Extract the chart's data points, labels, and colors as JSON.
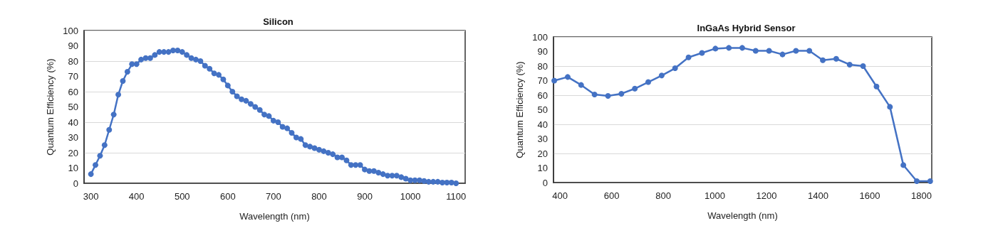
{
  "chart_data": [
    {
      "type": "line",
      "title": "Silicon",
      "xlabel": "Wavelength (nm)",
      "ylabel": "Quantum Efficiency (%)",
      "x": [
        300,
        310,
        320,
        330,
        340,
        350,
        360,
        370,
        380,
        390,
        400,
        410,
        420,
        430,
        440,
        450,
        460,
        470,
        480,
        490,
        500,
        510,
        520,
        530,
        540,
        550,
        560,
        570,
        580,
        590,
        600,
        610,
        620,
        630,
        640,
        650,
        660,
        670,
        680,
        690,
        700,
        710,
        720,
        730,
        740,
        750,
        760,
        770,
        780,
        790,
        800,
        810,
        820,
        830,
        840,
        850,
        860,
        870,
        880,
        890,
        900,
        910,
        920,
        930,
        940,
        950,
        960,
        970,
        980,
        990,
        1000,
        1010,
        1020,
        1030,
        1040,
        1050,
        1060,
        1070,
        1080,
        1090,
        1100
      ],
      "series": [
        {
          "color": "#4472c4",
          "values": [
            6,
            12,
            18,
            25,
            35,
            45,
            58,
            67,
            73,
            78,
            78,
            81,
            82,
            82,
            84,
            86,
            86,
            86,
            87,
            87,
            86,
            84,
            82,
            81,
            80,
            77,
            75,
            72,
            71,
            68,
            64,
            60,
            57,
            55,
            54,
            52,
            50,
            48,
            45,
            44,
            41,
            40,
            37,
            36,
            33,
            30,
            29,
            25,
            24,
            23,
            22,
            21,
            20,
            19,
            17,
            17,
            15,
            12,
            12,
            12,
            9,
            8,
            8,
            7,
            6,
            5,
            5,
            5,
            4,
            3,
            2,
            2,
            2,
            1.5,
            1,
            1,
            1,
            0.5,
            0.5,
            0.5,
            0
          ]
        }
      ],
      "xlim": [
        285,
        1120
      ],
      "xticks": [
        300,
        400,
        500,
        600,
        700,
        800,
        900,
        1000,
        1100
      ],
      "ylim": [
        0,
        100
      ],
      "yticks": [
        0,
        10,
        20,
        30,
        40,
        50,
        60,
        70,
        80,
        90,
        100
      ],
      "grid": "y",
      "marker": "circle",
      "line_style": "solid"
    },
    {
      "type": "line",
      "title": "InGaAs Hybrid Sensor",
      "xlabel": "Wavelength (nm)",
      "ylabel": "Quantum Efficiency (%)",
      "x": [
        378,
        430,
        482,
        534,
        586,
        638,
        690,
        742,
        794,
        846,
        898,
        950,
        1002,
        1054,
        1106,
        1158,
        1210,
        1262,
        1314,
        1366,
        1418,
        1470,
        1522,
        1574,
        1626,
        1678,
        1730,
        1782,
        1834
      ],
      "series": [
        {
          "color": "#4472c4",
          "values": [
            70,
            72.5,
            67,
            60.5,
            59.5,
            61,
            64.5,
            69,
            73.5,
            78.5,
            86,
            89,
            92,
            92.5,
            92.5,
            90.5,
            90.5,
            88,
            90.5,
            90.5,
            84,
            85,
            81,
            80,
            66,
            52,
            12,
            1,
            1
          ]
        }
      ],
      "xlim": [
        375,
        1840
      ],
      "xticks": [
        400,
        600,
        800,
        1000,
        1200,
        1400,
        1600,
        1800
      ],
      "ylim": [
        0,
        100
      ],
      "yticks": [
        0,
        10,
        20,
        30,
        40,
        50,
        60,
        70,
        80,
        90,
        100
      ],
      "grid": "y",
      "marker": "circle",
      "line_style": "solid"
    }
  ]
}
